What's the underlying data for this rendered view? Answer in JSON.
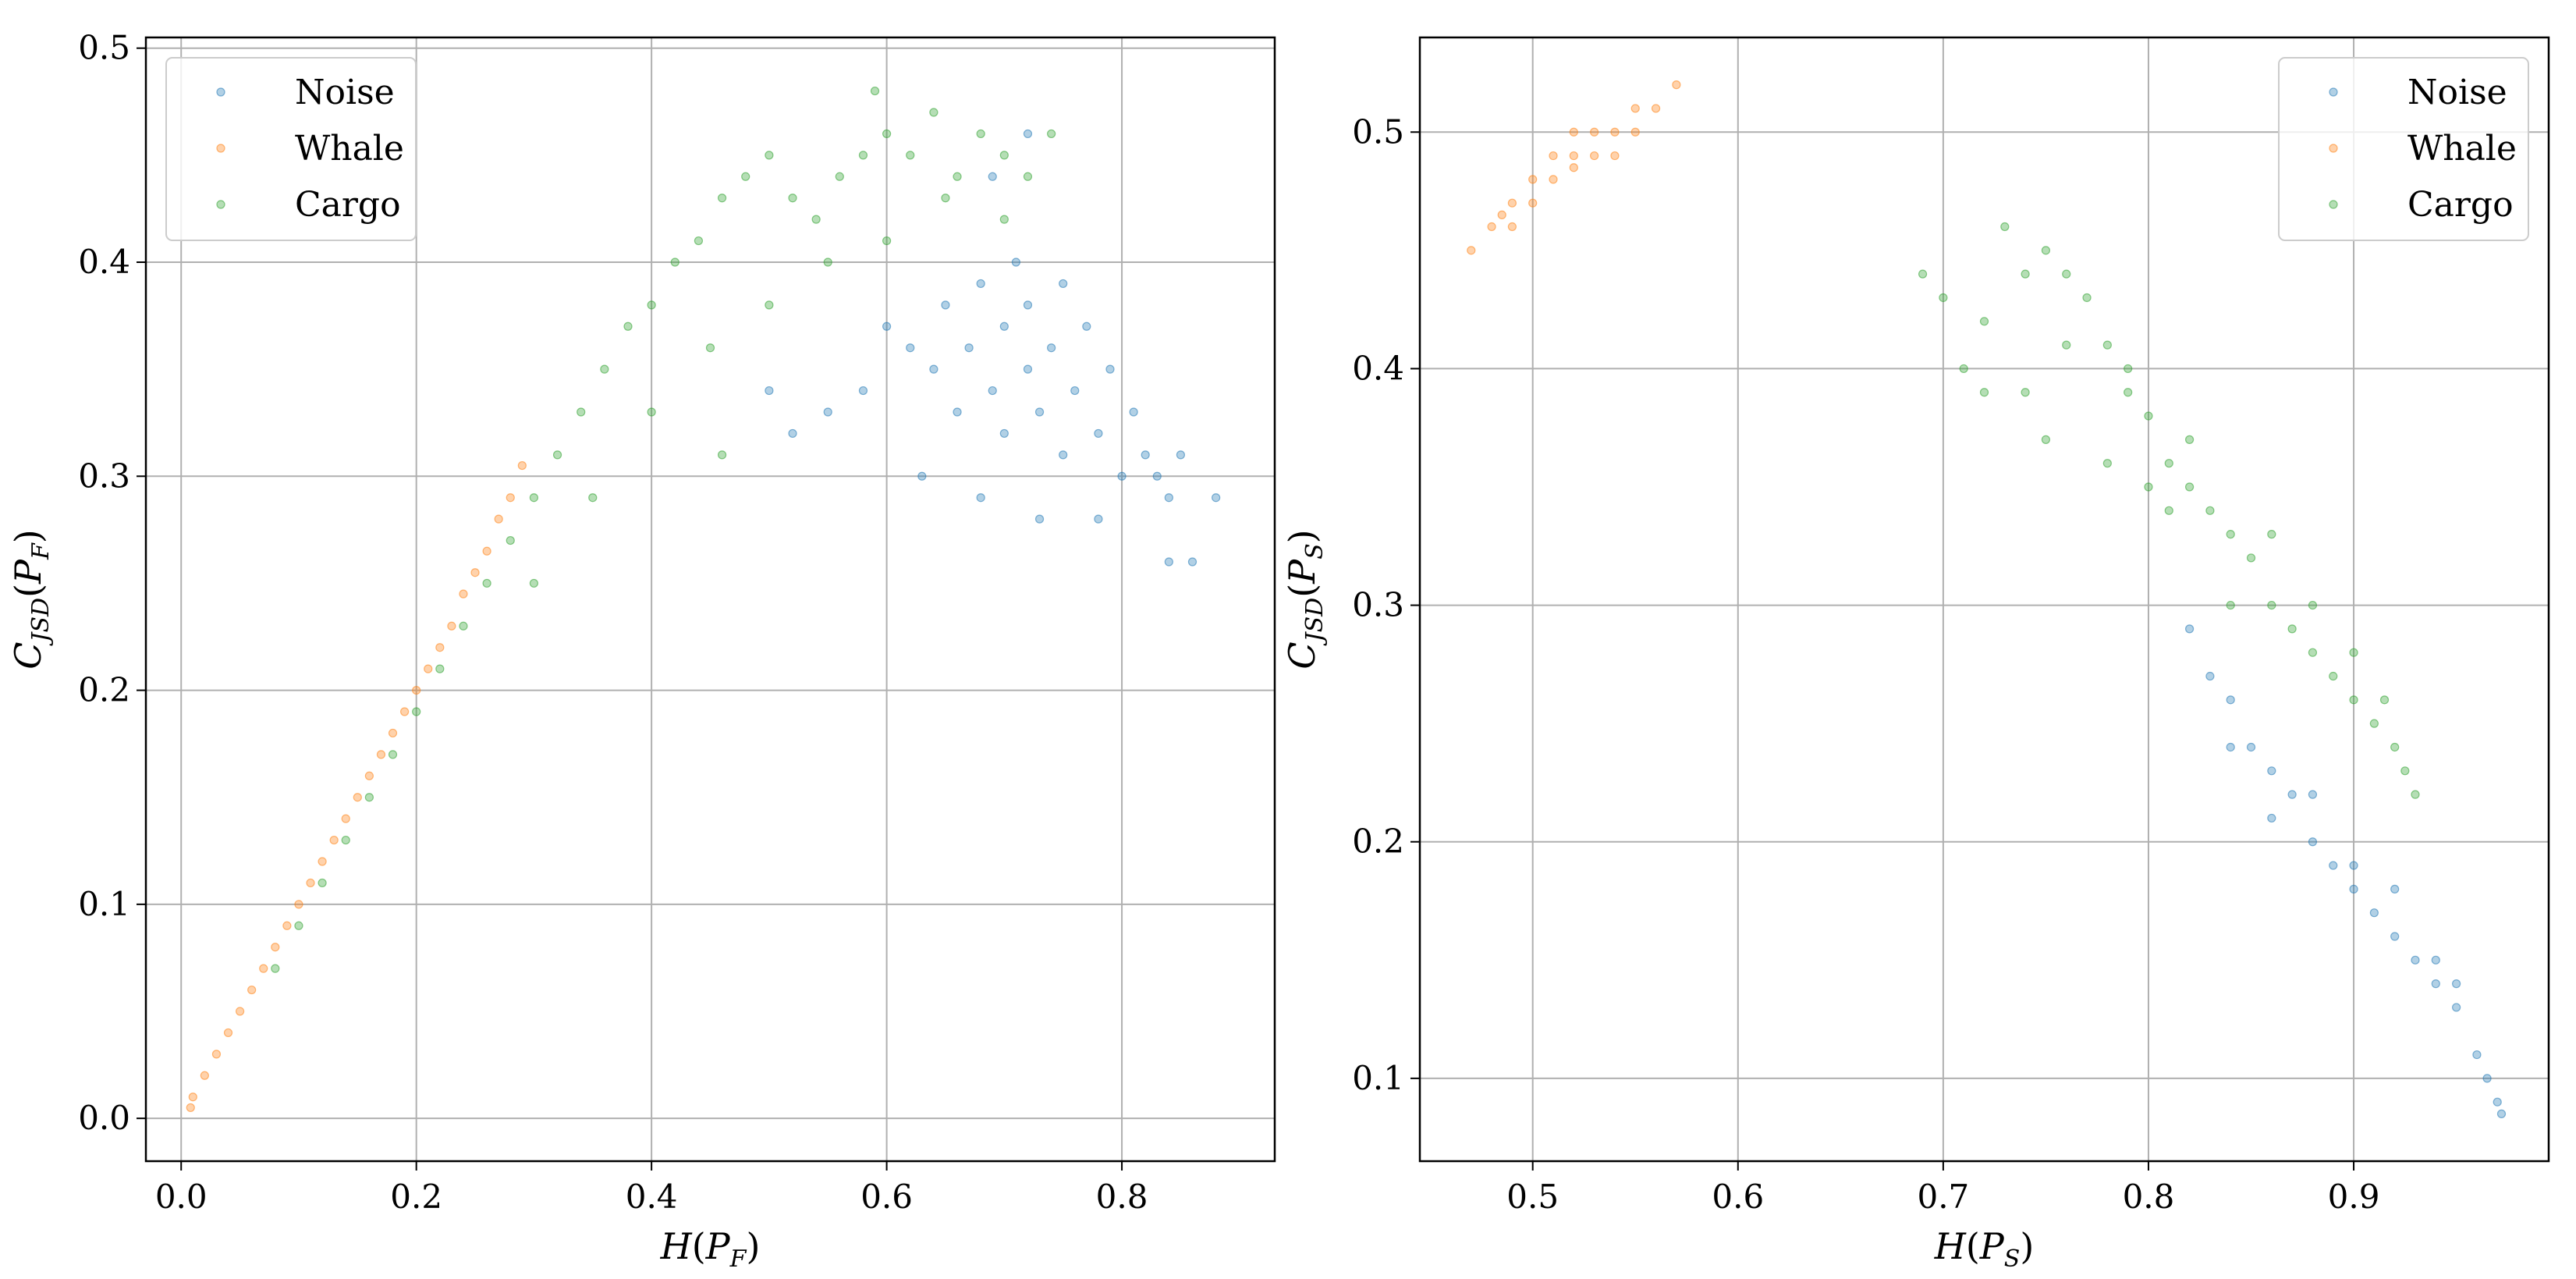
{
  "chart_data": [
    {
      "type": "scatter",
      "xlabel_base": "H",
      "xlabel_sub": "F",
      "ylabel_base": "C",
      "ylabel_sub1": "JSD",
      "ylabel_sub2": "F",
      "xlim": [
        -0.03,
        0.93
      ],
      "ylim": [
        -0.02,
        0.505
      ],
      "xticks": [
        0.0,
        0.2,
        0.4,
        0.6,
        0.8
      ],
      "xtick_labels": [
        "0.0",
        "0.2",
        "0.4",
        "0.6",
        "0.8"
      ],
      "yticks": [
        0.0,
        0.1,
        0.2,
        0.3,
        0.4,
        0.5
      ],
      "ytick_labels": [
        "0.0",
        "0.1",
        "0.2",
        "0.3",
        "0.4",
        "0.5"
      ],
      "grid": true,
      "legend_position": "top-left",
      "series": [
        {
          "name": "Noise",
          "color": "#1f77b4",
          "points": [
            [
              0.58,
              0.34
            ],
            [
              0.6,
              0.37
            ],
            [
              0.62,
              0.36
            ],
            [
              0.64,
              0.35
            ],
            [
              0.65,
              0.38
            ],
            [
              0.66,
              0.33
            ],
            [
              0.67,
              0.36
            ],
            [
              0.68,
              0.39
            ],
            [
              0.69,
              0.34
            ],
            [
              0.7,
              0.37
            ],
            [
              0.7,
              0.32
            ],
            [
              0.71,
              0.4
            ],
            [
              0.72,
              0.35
            ],
            [
              0.72,
              0.38
            ],
            [
              0.73,
              0.33
            ],
            [
              0.74,
              0.36
            ],
            [
              0.75,
              0.31
            ],
            [
              0.75,
              0.39
            ],
            [
              0.76,
              0.34
            ],
            [
              0.77,
              0.37
            ],
            [
              0.78,
              0.32
            ],
            [
              0.79,
              0.35
            ],
            [
              0.8,
              0.3
            ],
            [
              0.81,
              0.33
            ],
            [
              0.82,
              0.31
            ],
            [
              0.83,
              0.3
            ],
            [
              0.84,
              0.29
            ],
            [
              0.85,
              0.31
            ],
            [
              0.88,
              0.29
            ],
            [
              0.69,
              0.44
            ],
            [
              0.72,
              0.46
            ],
            [
              0.55,
              0.33
            ],
            [
              0.52,
              0.32
            ],
            [
              0.5,
              0.34
            ],
            [
              0.63,
              0.3
            ],
            [
              0.68,
              0.29
            ],
            [
              0.73,
              0.28
            ],
            [
              0.78,
              0.28
            ],
            [
              0.84,
              0.26
            ],
            [
              0.86,
              0.26
            ]
          ]
        },
        {
          "name": "Whale",
          "color": "#ff7f0e",
          "points": [
            [
              0.01,
              0.01
            ],
            [
              0.02,
              0.02
            ],
            [
              0.03,
              0.03
            ],
            [
              0.04,
              0.04
            ],
            [
              0.05,
              0.05
            ],
            [
              0.06,
              0.06
            ],
            [
              0.07,
              0.07
            ],
            [
              0.08,
              0.08
            ],
            [
              0.09,
              0.09
            ],
            [
              0.1,
              0.1
            ],
            [
              0.11,
              0.11
            ],
            [
              0.12,
              0.12
            ],
            [
              0.13,
              0.13
            ],
            [
              0.14,
              0.14
            ],
            [
              0.15,
              0.15
            ],
            [
              0.16,
              0.16
            ],
            [
              0.17,
              0.17
            ],
            [
              0.18,
              0.18
            ],
            [
              0.19,
              0.19
            ],
            [
              0.2,
              0.2
            ],
            [
              0.21,
              0.21
            ],
            [
              0.22,
              0.22
            ],
            [
              0.23,
              0.23
            ],
            [
              0.24,
              0.245
            ],
            [
              0.25,
              0.255
            ],
            [
              0.26,
              0.265
            ],
            [
              0.27,
              0.28
            ],
            [
              0.28,
              0.29
            ],
            [
              0.29,
              0.305
            ],
            [
              0.008,
              0.005
            ]
          ]
        },
        {
          "name": "Cargo",
          "color": "#2ca02c",
          "points": [
            [
              0.08,
              0.07
            ],
            [
              0.1,
              0.09
            ],
            [
              0.12,
              0.11
            ],
            [
              0.14,
              0.13
            ],
            [
              0.16,
              0.15
            ],
            [
              0.18,
              0.17
            ],
            [
              0.2,
              0.19
            ],
            [
              0.22,
              0.21
            ],
            [
              0.24,
              0.23
            ],
            [
              0.26,
              0.25
            ],
            [
              0.28,
              0.27
            ],
            [
              0.3,
              0.29
            ],
            [
              0.32,
              0.31
            ],
            [
              0.34,
              0.33
            ],
            [
              0.36,
              0.35
            ],
            [
              0.38,
              0.37
            ],
            [
              0.4,
              0.38
            ],
            [
              0.42,
              0.4
            ],
            [
              0.44,
              0.41
            ],
            [
              0.46,
              0.43
            ],
            [
              0.48,
              0.44
            ],
            [
              0.5,
              0.45
            ],
            [
              0.52,
              0.43
            ],
            [
              0.54,
              0.42
            ],
            [
              0.56,
              0.44
            ],
            [
              0.58,
              0.45
            ],
            [
              0.59,
              0.48
            ],
            [
              0.6,
              0.46
            ],
            [
              0.62,
              0.45
            ],
            [
              0.64,
              0.47
            ],
            [
              0.66,
              0.44
            ],
            [
              0.68,
              0.46
            ],
            [
              0.7,
              0.45
            ],
            [
              0.72,
              0.44
            ],
            [
              0.74,
              0.46
            ],
            [
              0.4,
              0.33
            ],
            [
              0.45,
              0.36
            ],
            [
              0.5,
              0.38
            ],
            [
              0.55,
              0.4
            ],
            [
              0.6,
              0.41
            ],
            [
              0.65,
              0.43
            ],
            [
              0.7,
              0.42
            ],
            [
              0.3,
              0.25
            ],
            [
              0.35,
              0.29
            ],
            [
              0.46,
              0.31
            ]
          ]
        }
      ]
    },
    {
      "type": "scatter",
      "xlabel_base": "H",
      "xlabel_sub": "S",
      "ylabel_base": "C",
      "ylabel_sub1": "JSD",
      "ylabel_sub2": "S",
      "xlim": [
        0.445,
        0.995
      ],
      "ylim": [
        0.065,
        0.54
      ],
      "xticks": [
        0.5,
        0.6,
        0.7,
        0.8,
        0.9
      ],
      "xtick_labels": [
        "0.5",
        "0.6",
        "0.7",
        "0.8",
        "0.9"
      ],
      "yticks": [
        0.1,
        0.2,
        0.3,
        0.4,
        0.5
      ],
      "ytick_labels": [
        "0.1",
        "0.2",
        "0.3",
        "0.4",
        "0.5"
      ],
      "grid": true,
      "legend_position": "top-right",
      "series": [
        {
          "name": "Noise",
          "color": "#1f77b4",
          "points": [
            [
              0.82,
              0.29
            ],
            [
              0.83,
              0.27
            ],
            [
              0.84,
              0.26
            ],
            [
              0.85,
              0.24
            ],
            [
              0.86,
              0.23
            ],
            [
              0.87,
              0.22
            ],
            [
              0.88,
              0.2
            ],
            [
              0.89,
              0.19
            ],
            [
              0.9,
              0.18
            ],
            [
              0.91,
              0.17
            ],
            [
              0.92,
              0.16
            ],
            [
              0.93,
              0.15
            ],
            [
              0.94,
              0.14
            ],
            [
              0.95,
              0.13
            ],
            [
              0.96,
              0.11
            ],
            [
              0.965,
              0.1
            ],
            [
              0.97,
              0.09
            ],
            [
              0.972,
              0.085
            ],
            [
              0.84,
              0.24
            ],
            [
              0.86,
              0.21
            ],
            [
              0.88,
              0.22
            ],
            [
              0.9,
              0.19
            ],
            [
              0.92,
              0.18
            ],
            [
              0.94,
              0.15
            ],
            [
              0.95,
              0.14
            ]
          ]
        },
        {
          "name": "Whale",
          "color": "#ff7f0e",
          "points": [
            [
              0.47,
              0.45
            ],
            [
              0.48,
              0.46
            ],
            [
              0.49,
              0.47
            ],
            [
              0.5,
              0.48
            ],
            [
              0.51,
              0.49
            ],
            [
              0.52,
              0.49
            ],
            [
              0.53,
              0.5
            ],
            [
              0.54,
              0.5
            ],
            [
              0.55,
              0.51
            ],
            [
              0.56,
              0.51
            ],
            [
              0.57,
              0.52
            ],
            [
              0.5,
              0.47
            ],
            [
              0.51,
              0.48
            ],
            [
              0.52,
              0.5
            ],
            [
              0.53,
              0.49
            ],
            [
              0.54,
              0.49
            ],
            [
              0.49,
              0.46
            ],
            [
              0.52,
              0.485
            ],
            [
              0.55,
              0.5
            ],
            [
              0.485,
              0.465
            ]
          ]
        },
        {
          "name": "Cargo",
          "color": "#2ca02c",
          "points": [
            [
              0.69,
              0.44
            ],
            [
              0.7,
              0.43
            ],
            [
              0.71,
              0.4
            ],
            [
              0.72,
              0.42
            ],
            [
              0.73,
              0.46
            ],
            [
              0.74,
              0.44
            ],
            [
              0.75,
              0.45
            ],
            [
              0.76,
              0.44
            ],
            [
              0.77,
              0.43
            ],
            [
              0.78,
              0.41
            ],
            [
              0.79,
              0.4
            ],
            [
              0.8,
              0.38
            ],
            [
              0.81,
              0.36
            ],
            [
              0.82,
              0.35
            ],
            [
              0.83,
              0.34
            ],
            [
              0.84,
              0.33
            ],
            [
              0.85,
              0.32
            ],
            [
              0.86,
              0.3
            ],
            [
              0.87,
              0.29
            ],
            [
              0.88,
              0.28
            ],
            [
              0.89,
              0.27
            ],
            [
              0.9,
              0.26
            ],
            [
              0.91,
              0.25
            ],
            [
              0.92,
              0.24
            ],
            [
              0.93,
              0.22
            ],
            [
              0.72,
              0.39
            ],
            [
              0.75,
              0.37
            ],
            [
              0.78,
              0.36
            ],
            [
              0.81,
              0.34
            ],
            [
              0.84,
              0.3
            ],
            [
              0.76,
              0.41
            ],
            [
              0.79,
              0.39
            ],
            [
              0.82,
              0.37
            ],
            [
              0.86,
              0.33
            ],
            [
              0.88,
              0.3
            ],
            [
              0.9,
              0.28
            ],
            [
              0.915,
              0.26
            ],
            [
              0.925,
              0.23
            ],
            [
              0.74,
              0.39
            ],
            [
              0.8,
              0.35
            ]
          ]
        }
      ]
    }
  ]
}
